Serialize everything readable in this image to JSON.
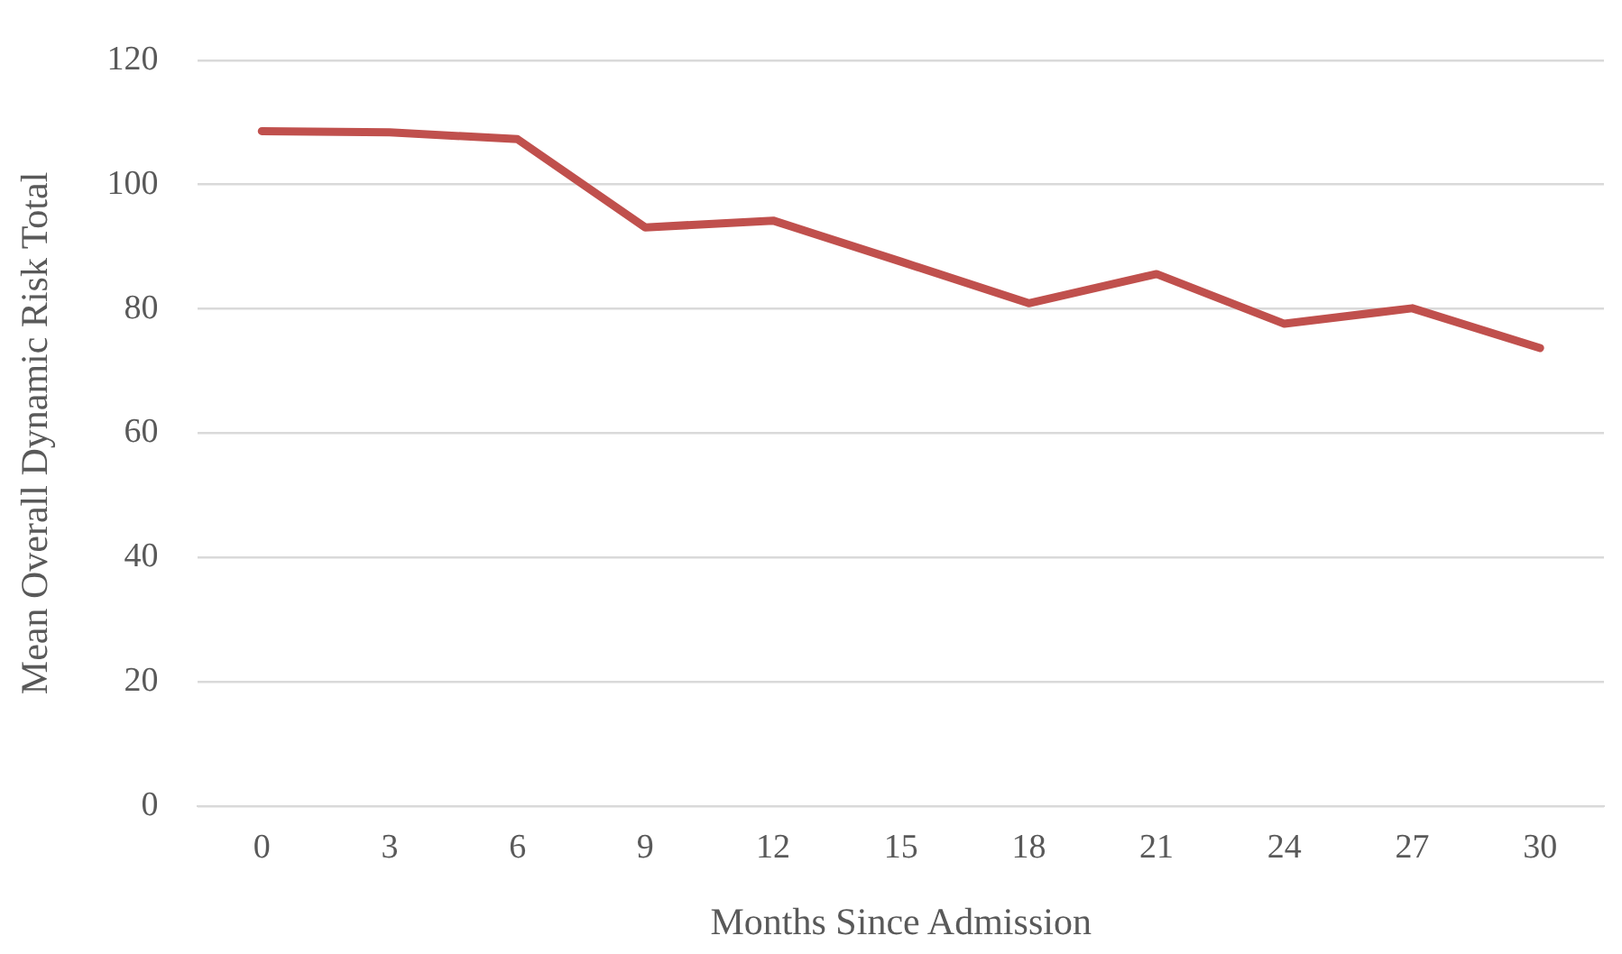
{
  "chart_data": {
    "type": "line",
    "xlabel": "Months Since Admission",
    "ylabel": "Mean Overall Dynamic Risk Total",
    "categories": [
      "0",
      "3",
      "6",
      "9",
      "12",
      "15",
      "18",
      "21",
      "24",
      "27",
      "30"
    ],
    "series": [
      {
        "color": "#c0504d",
        "values": [
          108.6,
          108.4,
          107.3,
          93.1,
          94.2,
          87.6,
          80.9,
          85.6,
          77.6,
          80.1,
          73.7
        ]
      }
    ],
    "ylim": [
      0,
      120
    ],
    "yticks": [
      0,
      20,
      40,
      60,
      80,
      100,
      120
    ],
    "grid": "y",
    "legend": false,
    "marker": "none",
    "line_style": "solid"
  }
}
